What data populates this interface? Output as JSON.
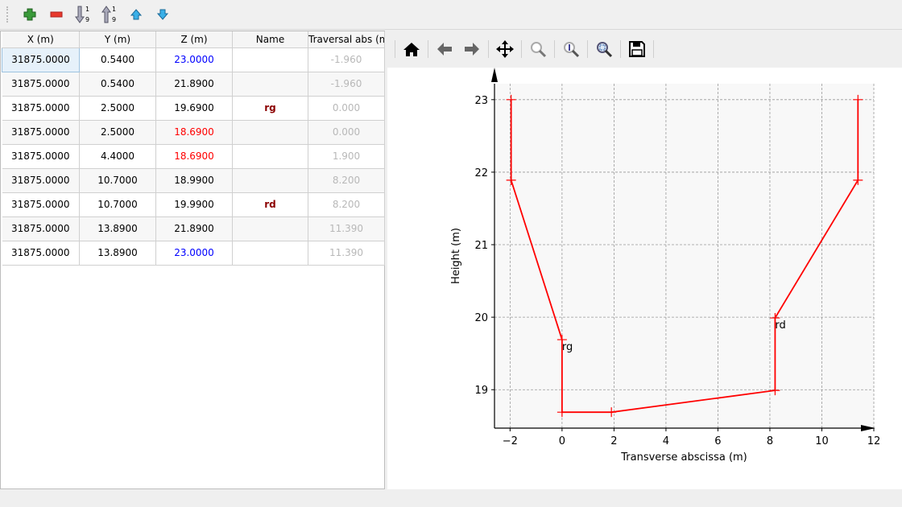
{
  "toolbar": {
    "buttons": [
      {
        "name": "add-row",
        "icon": "plus-icon"
      },
      {
        "name": "remove-row",
        "icon": "minus-icon"
      },
      {
        "name": "sort-ascending",
        "icon": "sort-ascending-icon"
      },
      {
        "name": "sort-descending",
        "icon": "sort-descending-icon"
      },
      {
        "name": "move-up",
        "icon": "arrow-up-icon"
      },
      {
        "name": "move-down",
        "icon": "arrow-down-icon"
      }
    ]
  },
  "table": {
    "columns": [
      "X (m)",
      "Y (m)",
      "Z (m)",
      "Name",
      "Traversal abs (m"
    ],
    "rows": [
      {
        "x": "31875.0000",
        "y": "0.5400",
        "z": "23.0000",
        "name": "",
        "trav": "-1.960",
        "zcolor": "#0000ff"
      },
      {
        "x": "31875.0000",
        "y": "0.5400",
        "z": "21.8900",
        "name": "",
        "trav": "-1.960",
        "zcolor": "#000000"
      },
      {
        "x": "31875.0000",
        "y": "2.5000",
        "z": "19.6900",
        "name": "rg",
        "trav": "0.000",
        "zcolor": "#000000"
      },
      {
        "x": "31875.0000",
        "y": "2.5000",
        "z": "18.6900",
        "name": "",
        "trav": "0.000",
        "zcolor": "#ff0000"
      },
      {
        "x": "31875.0000",
        "y": "4.4000",
        "z": "18.6900",
        "name": "",
        "trav": "1.900",
        "zcolor": "#ff0000"
      },
      {
        "x": "31875.0000",
        "y": "10.7000",
        "z": "18.9900",
        "name": "",
        "trav": "8.200",
        "zcolor": "#000000"
      },
      {
        "x": "31875.0000",
        "y": "10.7000",
        "z": "19.9900",
        "name": "rd",
        "trav": "8.200",
        "zcolor": "#000000"
      },
      {
        "x": "31875.0000",
        "y": "13.8900",
        "z": "21.8900",
        "name": "",
        "trav": "11.390",
        "zcolor": "#000000"
      },
      {
        "x": "31875.0000",
        "y": "13.8900",
        "z": "23.0000",
        "name": "",
        "trav": "11.390",
        "zcolor": "#0000ff"
      }
    ]
  },
  "plot_toolbar": {
    "buttons": [
      "home-icon",
      "back-icon",
      "forward-icon",
      "pan-icon",
      "zoom-icon",
      "zoom-in-icon",
      "zoom-fit-icon",
      "save-icon"
    ]
  },
  "chart_data": {
    "type": "line",
    "xlabel": "Transverse abscissa (m)",
    "ylabel": "Height (m)",
    "xlim": [
      -2.6,
      12
    ],
    "ylim": [
      18.47,
      23.22
    ],
    "xticks": [
      -2,
      0,
      2,
      4,
      6,
      8,
      10,
      12
    ],
    "yticks": [
      19,
      20,
      21,
      22,
      23
    ],
    "grid": true,
    "series": [
      {
        "color": "#ff0000",
        "marker": "+",
        "x": [
          -1.96,
          -1.96,
          0,
          0,
          1.9,
          8.2,
          8.2,
          11.39,
          11.39
        ],
        "y": [
          23,
          21.89,
          19.69,
          18.69,
          18.69,
          18.99,
          19.99,
          21.89,
          23
        ]
      }
    ],
    "annotations": [
      {
        "text": "rg",
        "x": 0,
        "y": 19.69
      },
      {
        "text": "rd",
        "x": 8.2,
        "y": 19.99
      }
    ]
  }
}
